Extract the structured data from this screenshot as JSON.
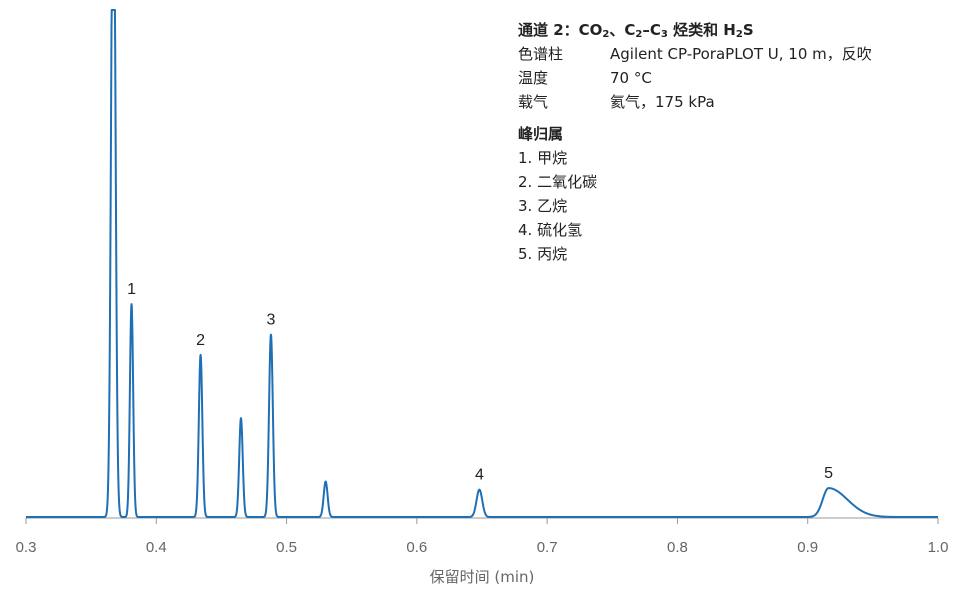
{
  "info": {
    "title_parts": [
      "通道 2：CO",
      "2",
      "、C",
      "2",
      "–C",
      "3",
      " 烃类和 H",
      "2",
      "S"
    ],
    "rows": [
      {
        "label": "色谱柱",
        "value": "Agilent CP-PoraPLOT U, 10 m，反吹"
      },
      {
        "label": "温度",
        "value": "70 °C"
      },
      {
        "label": "载气",
        "value": "氦气，175 kPa"
      }
    ],
    "peaks_heading": "峰归属",
    "peaks": [
      "1. 甲烷",
      "2. 二氧化碳",
      "3. 乙烷",
      "4. 硫化氢",
      "5. 丙烷"
    ]
  },
  "chart_data": {
    "type": "line",
    "xlabel": "保留时间 (min)",
    "ylabel": "",
    "xlim": [
      0.3,
      1.0
    ],
    "ylim": [
      0,
      100
    ],
    "x_ticks": [
      "0.3",
      "0.4",
      "0.5",
      "0.6",
      "0.7",
      "0.8",
      "0.9",
      "1.0"
    ],
    "grid": false,
    "color": "#1f6fb5",
    "peaks": [
      {
        "x": 0.367,
        "height": 140,
        "label": ""
      },
      {
        "x": 0.381,
        "height": 42,
        "label": "1"
      },
      {
        "x": 0.434,
        "height": 32,
        "label": "2"
      },
      {
        "x": 0.465,
        "height": 19.5,
        "label": ""
      },
      {
        "x": 0.488,
        "height": 36,
        "label": "3"
      },
      {
        "x": 0.53,
        "height": 7,
        "label": ""
      },
      {
        "x": 0.648,
        "height": 5.4,
        "label": "4"
      },
      {
        "x": 0.916,
        "height": 5.7,
        "label": "5"
      }
    ]
  }
}
